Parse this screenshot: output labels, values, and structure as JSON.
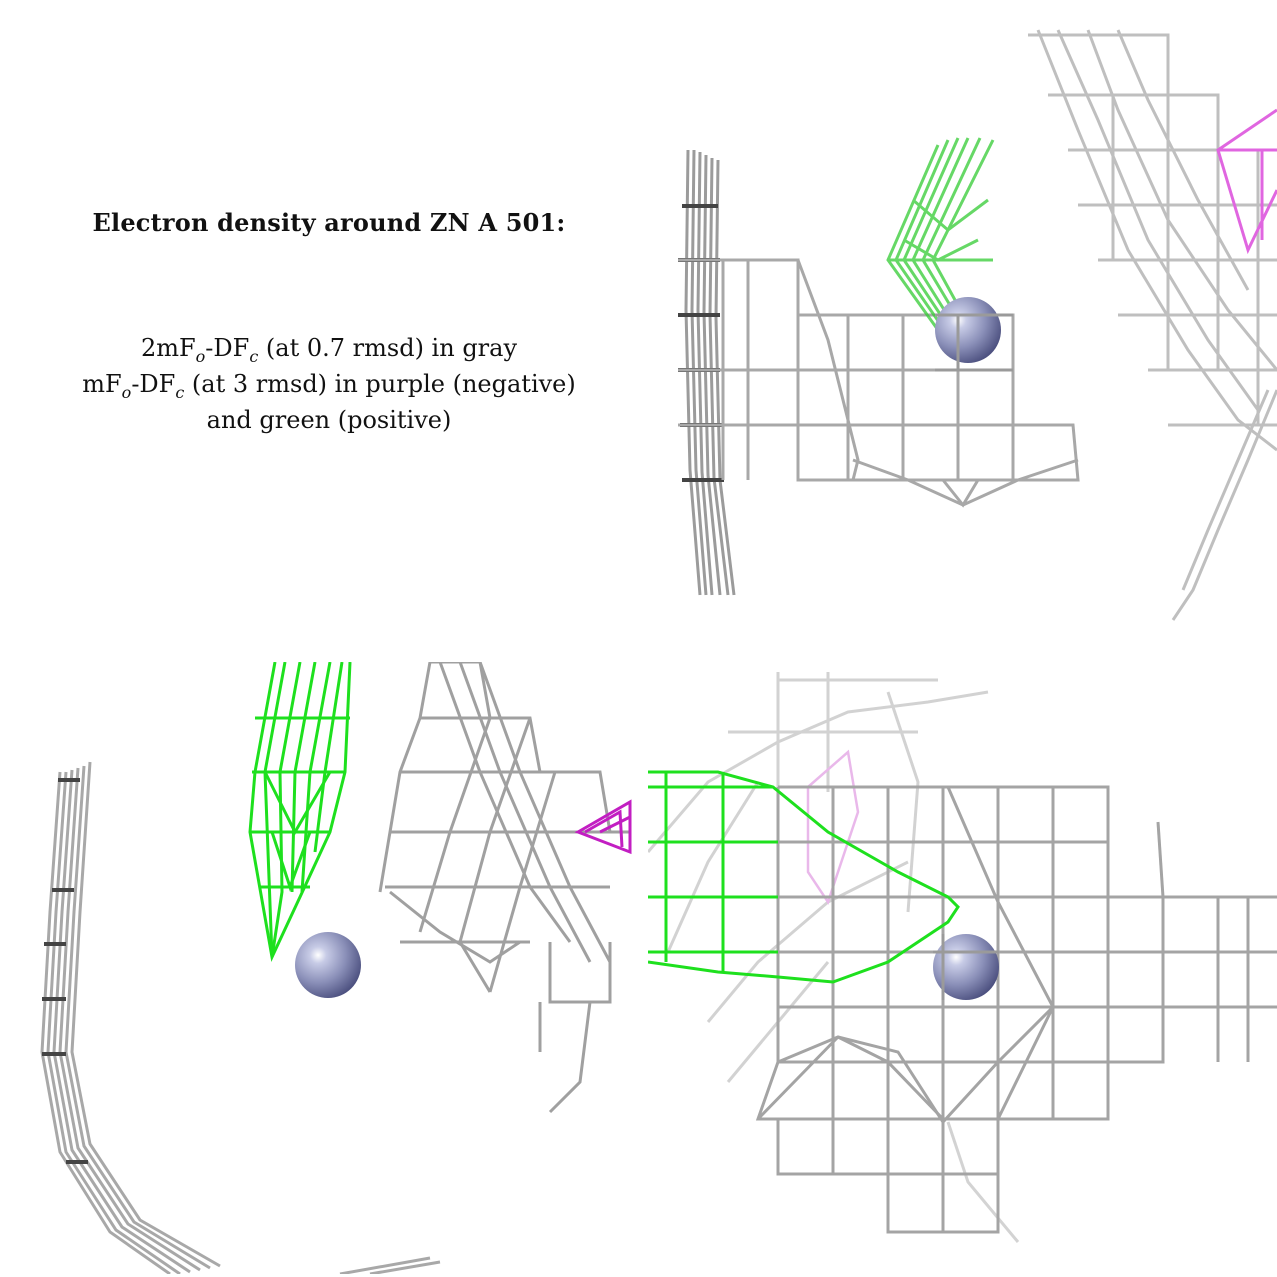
{
  "title": "Electron density around ZN A 501:",
  "legend": {
    "line1": {
      "map": "2mF",
      "sub1": "o",
      "mid": "-DF",
      "sub2": "c",
      "rest": " (at 0.7 rmsd) in gray"
    },
    "line2": {
      "map": "mF",
      "sub1": "o",
      "mid": "-DF",
      "sub2": "c",
      "rest": " (at 3 rmsd) in purple (negative)"
    },
    "line3": {
      "text": "and green (positive)"
    }
  },
  "colors": {
    "gray_mesh": "#9a9a9a",
    "dark_mesh": "#555555",
    "green_mesh": "#22dd22",
    "purple_mesh": "#cc22cc",
    "zinc_sphere": "#8a8fb8",
    "frame": "#000000"
  },
  "panels": [
    "view-top-right",
    "view-bottom-left",
    "view-bottom-right"
  ]
}
